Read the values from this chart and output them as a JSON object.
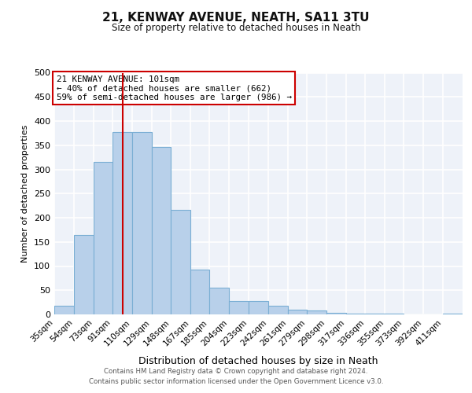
{
  "title": "21, KENWAY AVENUE, NEATH, SA11 3TU",
  "subtitle": "Size of property relative to detached houses in Neath",
  "xlabel": "Distribution of detached houses by size in Neath",
  "ylabel": "Number of detached properties",
  "bin_labels": [
    "35sqm",
    "54sqm",
    "73sqm",
    "91sqm",
    "110sqm",
    "129sqm",
    "148sqm",
    "167sqm",
    "185sqm",
    "204sqm",
    "223sqm",
    "242sqm",
    "261sqm",
    "279sqm",
    "298sqm",
    "317sqm",
    "336sqm",
    "355sqm",
    "373sqm",
    "392sqm",
    "411sqm"
  ],
  "bar_values": [
    18,
    165,
    315,
    378,
    378,
    346,
    216,
    93,
    56,
    28,
    28,
    18,
    10,
    8,
    4,
    2,
    2,
    1,
    0,
    0,
    2
  ],
  "bar_color": "#b8d0ea",
  "bar_edgecolor": "#7aaed4",
  "background_color": "#eef2f9",
  "grid_color": "#ffffff",
  "vline_color": "#cc0000",
  "ylim": [
    0,
    500
  ],
  "yticks": [
    0,
    50,
    100,
    150,
    200,
    250,
    300,
    350,
    400,
    450,
    500
  ],
  "annotation_title": "21 KENWAY AVENUE: 101sqm",
  "annotation_line1": "← 40% of detached houses are smaller (662)",
  "annotation_line2": "59% of semi-detached houses are larger (986) →",
  "footer_line1": "Contains HM Land Registry data © Crown copyright and database right 2024.",
  "footer_line2": "Contains public sector information licensed under the Open Government Licence v3.0.",
  "bin_edges": [
    35,
    54,
    73,
    91,
    110,
    129,
    148,
    167,
    185,
    204,
    223,
    242,
    261,
    279,
    298,
    317,
    336,
    355,
    373,
    392,
    411,
    430
  ],
  "property_sqm": 101
}
